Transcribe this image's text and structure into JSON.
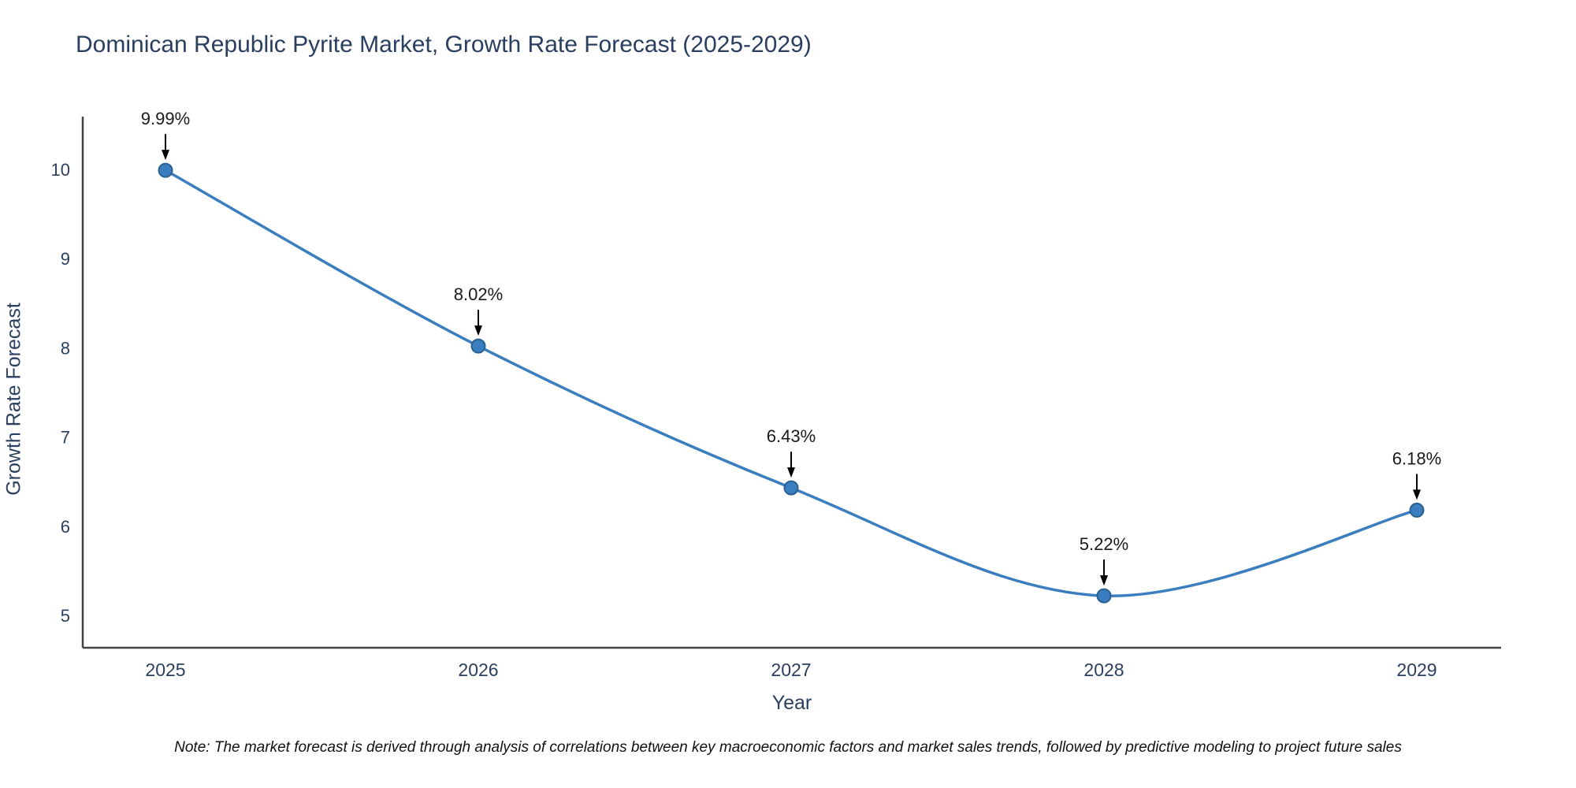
{
  "page": {
    "note": "Note: The market forecast is derived through analysis of correlations between key macroeconomic factors and market sales trends, followed by predictive modeling to project future sales"
  },
  "chart_data": {
    "type": "line",
    "title": "Dominican Republic Pyrite Market, Growth Rate Forecast (2025-2029)",
    "xlabel": "Year",
    "ylabel": "Growth Rate Forecast",
    "categories": [
      "2025",
      "2026",
      "2027",
      "2028",
      "2029"
    ],
    "values": [
      9.99,
      8.02,
      6.43,
      5.22,
      6.18
    ],
    "point_labels": [
      "9.99%",
      "8.02%",
      "6.43%",
      "5.22%",
      "6.18%"
    ],
    "yticks": [
      5,
      6,
      7,
      8,
      9,
      10
    ],
    "ylim": [
      4.65,
      10.6
    ],
    "grid": false,
    "legend": "none",
    "line_color": "#3a7ebf",
    "marker_color": "#3a7ebf",
    "marker_edge_color": "#2a5f8f",
    "axis_color": "#444444",
    "tick_color": "#2a3f5f",
    "annotation_color": "#1a1a1a",
    "arrow_color": "#000000"
  }
}
